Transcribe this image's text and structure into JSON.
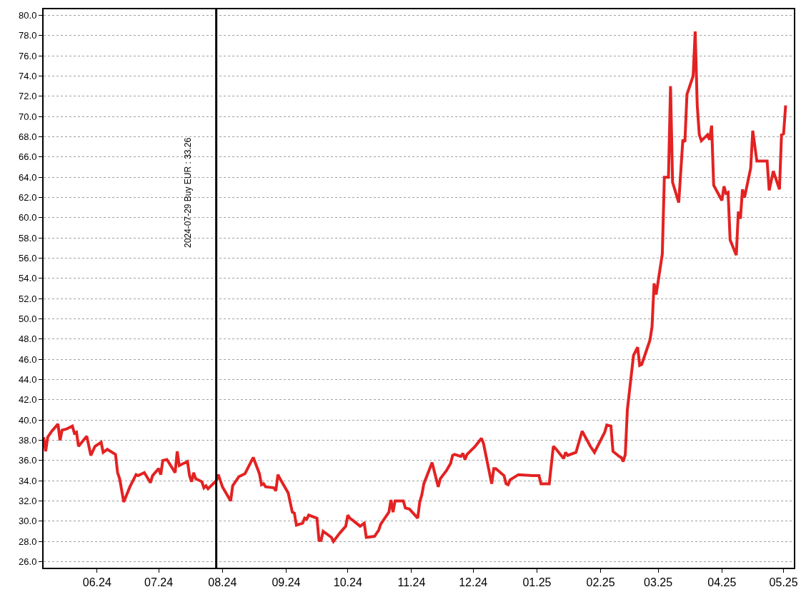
{
  "chart_data": {
    "type": "line",
    "x": [
      "2024-05-06",
      "2024-05-07",
      "2024-05-08",
      "2024-05-10",
      "2024-05-13",
      "2024-05-14",
      "2024-05-15",
      "2024-05-17",
      "2024-05-20",
      "2024-05-21",
      "2024-05-22",
      "2024-05-23",
      "2024-05-27",
      "2024-05-29",
      "2024-05-31",
      "2024-06-03",
      "2024-06-04",
      "2024-06-06",
      "2024-06-10",
      "2024-06-11",
      "2024-06-12",
      "2024-06-14",
      "2024-06-17",
      "2024-06-20",
      "2024-06-21",
      "2024-06-24",
      "2024-06-27",
      "2024-06-28",
      "2024-07-01",
      "2024-07-02",
      "2024-07-03",
      "2024-07-05",
      "2024-07-09",
      "2024-07-10",
      "2024-07-11",
      "2024-07-15",
      "2024-07-16",
      "2024-07-17",
      "2024-07-18",
      "2024-07-19",
      "2024-07-22",
      "2024-07-23",
      "2024-07-24",
      "2024-07-25",
      "2024-07-29",
      "2024-07-30",
      "2024-08-01",
      "2024-08-05",
      "2024-08-06",
      "2024-08-09",
      "2024-08-12",
      "2024-08-14",
      "2024-08-16",
      "2024-08-19",
      "2024-08-20",
      "2024-08-21",
      "2024-08-22",
      "2024-08-26",
      "2024-08-27",
      "2024-08-28",
      "2024-08-29",
      "2024-09-02",
      "2024-09-04",
      "2024-09-05",
      "2024-09-06",
      "2024-09-09",
      "2024-09-10",
      "2024-09-11",
      "2024-09-12",
      "2024-09-16",
      "2024-09-17",
      "2024-09-18",
      "2024-09-19",
      "2024-09-23",
      "2024-09-24",
      "2024-09-27",
      "2024-09-30",
      "2024-10-01",
      "2024-10-02",
      "2024-10-04",
      "2024-10-07",
      "2024-10-09",
      "2024-10-10",
      "2024-10-14",
      "2024-10-16",
      "2024-10-17",
      "2024-10-21",
      "2024-10-22",
      "2024-10-23",
      "2024-10-24",
      "2024-10-25",
      "2024-10-28",
      "2024-10-29",
      "2024-10-31",
      "2024-11-04",
      "2024-11-05",
      "2024-11-06",
      "2024-11-07",
      "2024-11-11",
      "2024-11-14",
      "2024-11-15",
      "2024-11-18",
      "2024-11-20",
      "2024-11-21",
      "2024-11-22",
      "2024-11-25",
      "2024-11-26",
      "2024-11-27",
      "2024-11-28",
      "2024-12-02",
      "2024-12-05",
      "2024-12-06",
      "2024-12-10",
      "2024-12-11",
      "2024-12-12",
      "2024-12-16",
      "2024-12-17",
      "2024-12-18",
      "2024-12-19",
      "2024-12-23",
      "2024-12-30",
      "2025-01-02",
      "2025-01-03",
      "2025-01-07",
      "2025-01-09",
      "2025-01-10",
      "2025-01-14",
      "2025-01-15",
      "2025-01-16",
      "2025-01-20",
      "2025-01-23",
      "2025-01-27",
      "2025-01-29",
      "2025-02-03",
      "2025-02-04",
      "2025-02-06",
      "2025-02-07",
      "2025-02-10",
      "2025-02-11",
      "2025-02-12",
      "2025-02-13",
      "2025-02-14",
      "2025-02-17",
      "2025-02-19",
      "2025-02-20",
      "2025-02-21",
      "2025-02-25",
      "2025-02-26",
      "2025-02-27",
      "2025-02-28",
      "2025-03-03",
      "2025-03-04",
      "2025-03-06",
      "2025-03-07",
      "2025-03-08",
      "2025-03-11",
      "2025-03-13",
      "2025-03-14",
      "2025-03-15",
      "2025-03-18",
      "2025-03-19",
      "2025-03-20",
      "2025-03-21",
      "2025-03-22",
      "2025-03-25",
      "2025-03-26",
      "2025-03-27",
      "2025-03-28",
      "2025-04-01",
      "2025-04-02",
      "2025-04-03",
      "2025-04-04",
      "2025-04-05",
      "2025-04-08",
      "2025-04-09",
      "2025-04-10",
      "2025-04-11",
      "2025-04-12",
      "2025-04-15",
      "2025-04-16",
      "2025-04-18",
      "2025-04-23",
      "2025-04-24",
      "2025-04-26",
      "2025-04-29",
      "2025-04-30",
      "2025-05-01",
      "2025-05-02"
    ],
    "series": [
      {
        "color": "#e32222",
        "values": [
          38.3,
          36.9,
          38.3,
          38.9,
          39.6,
          38.0,
          39.0,
          39.1,
          39.4,
          38.7,
          38.8,
          37.4,
          38.4,
          36.5,
          37.4,
          37.8,
          36.8,
          37.1,
          36.6,
          34.8,
          34.2,
          31.9,
          33.4,
          34.6,
          34.5,
          34.8,
          33.8,
          34.5,
          35.2,
          34.6,
          36.0,
          36.1,
          34.8,
          36.9,
          35.5,
          35.9,
          34.5,
          33.9,
          34.8,
          34.2,
          33.9,
          33.3,
          33.5,
          33.2,
          34.0,
          34.6,
          33.4,
          32.0,
          33.5,
          34.4,
          34.7,
          35.5,
          36.3,
          34.7,
          33.6,
          33.7,
          33.4,
          33.3,
          33.0,
          34.6,
          34.2,
          32.8,
          30.9,
          30.8,
          29.6,
          29.8,
          30.3,
          30.2,
          30.6,
          30.3,
          28.1,
          28.1,
          29.0,
          28.4,
          28.0,
          28.8,
          29.5,
          30.6,
          30.3,
          30.0,
          29.5,
          29.8,
          28.4,
          28.5,
          29.1,
          29.7,
          30.9,
          32.1,
          30.9,
          32.0,
          32.0,
          32.0,
          31.3,
          31.2,
          30.3,
          31.9,
          32.6,
          33.7,
          35.8,
          33.4,
          34.2,
          35.0,
          35.7,
          36.5,
          36.6,
          36.4,
          36.7,
          36.1,
          36.6,
          37.4,
          38.2,
          37.7,
          33.7,
          35.2,
          35.2,
          34.5,
          33.7,
          33.6,
          34.1,
          34.6,
          34.5,
          34.5,
          33.7,
          33.7,
          37.4,
          37.2,
          36.2,
          36.8,
          36.5,
          36.8,
          38.9,
          37.4,
          36.8,
          38.8,
          39.5,
          39.4,
          36.9,
          36.4,
          36.3,
          35.9,
          36.6,
          41.0,
          46.4,
          47.2,
          45.4,
          45.5,
          47.9,
          49.2,
          53.5,
          52.4,
          56.4,
          64.0,
          64.0,
          73.0,
          63.5,
          61.5,
          67.7,
          67.5,
          72.2,
          74.0,
          78.4,
          71.1,
          68.2,
          67.6,
          68.2,
          67.7,
          69.1,
          63.2,
          61.7,
          63.1,
          62.4,
          62.5,
          57.8,
          56.3,
          60.6,
          59.9,
          62.8,
          62.0,
          64.9,
          68.6,
          65.6,
          65.6,
          62.7,
          64.6,
          62.8,
          68.2,
          68.3,
          71.1
        ]
      }
    ],
    "xlim": [
      "2024-05-06",
      "2025-05-06"
    ],
    "xticks": [
      {
        "value": "2024-06-01",
        "label": "06.24"
      },
      {
        "value": "2024-07-01",
        "label": "07.24"
      },
      {
        "value": "2024-08-01",
        "label": "08.24"
      },
      {
        "value": "2024-09-01",
        "label": "09.24"
      },
      {
        "value": "2024-10-01",
        "label": "10.24"
      },
      {
        "value": "2024-11-01",
        "label": "11.24"
      },
      {
        "value": "2024-12-01",
        "label": "12.24"
      },
      {
        "value": "2025-01-01",
        "label": "01.25"
      },
      {
        "value": "2025-02-01",
        "label": "02.25"
      },
      {
        "value": "2025-03-01",
        "label": "03.25"
      },
      {
        "value": "2025-04-01",
        "label": "04.25"
      },
      {
        "value": "2025-05-01",
        "label": "05.25"
      }
    ],
    "ylim": [
      25.4,
      80.6
    ],
    "yticks": [
      {
        "value": 26,
        "label": "26.0"
      },
      {
        "value": 28,
        "label": "28.0"
      },
      {
        "value": 30,
        "label": "30.0"
      },
      {
        "value": 32,
        "label": "32.0"
      },
      {
        "value": 34,
        "label": "34.0"
      },
      {
        "value": 36,
        "label": "36.0"
      },
      {
        "value": 38,
        "label": "38.0"
      },
      {
        "value": 40,
        "label": "40.0"
      },
      {
        "value": 42,
        "label": "42.0"
      },
      {
        "value": 44,
        "label": "44.0"
      },
      {
        "value": 46,
        "label": "46.0"
      },
      {
        "value": 48,
        "label": "48.0"
      },
      {
        "value": 50,
        "label": "50.0"
      },
      {
        "value": 52,
        "label": "52.0"
      },
      {
        "value": 54,
        "label": "54.0"
      },
      {
        "value": 56,
        "label": "56.0"
      },
      {
        "value": 58,
        "label": "58.0"
      },
      {
        "value": 60,
        "label": "60.0"
      },
      {
        "value": 62,
        "label": "62.0"
      },
      {
        "value": 64,
        "label": "64.0"
      },
      {
        "value": 66,
        "label": "66.0"
      },
      {
        "value": 68,
        "label": "68.0"
      },
      {
        "value": 70,
        "label": "70.0"
      },
      {
        "value": 72,
        "label": "72.0"
      },
      {
        "value": 74,
        "label": "74.0"
      },
      {
        "value": 76,
        "label": "76.0"
      },
      {
        "value": 78,
        "label": "78.0"
      },
      {
        "value": 80,
        "label": "80.0"
      }
    ],
    "grid": "y",
    "marker": "none",
    "line_style": "solid",
    "ref_lines": [
      {
        "axis": "x",
        "value": "2024-07-29",
        "label": "2024-07-29 Buy EUR : 33.26",
        "color": "#000000"
      }
    ]
  }
}
